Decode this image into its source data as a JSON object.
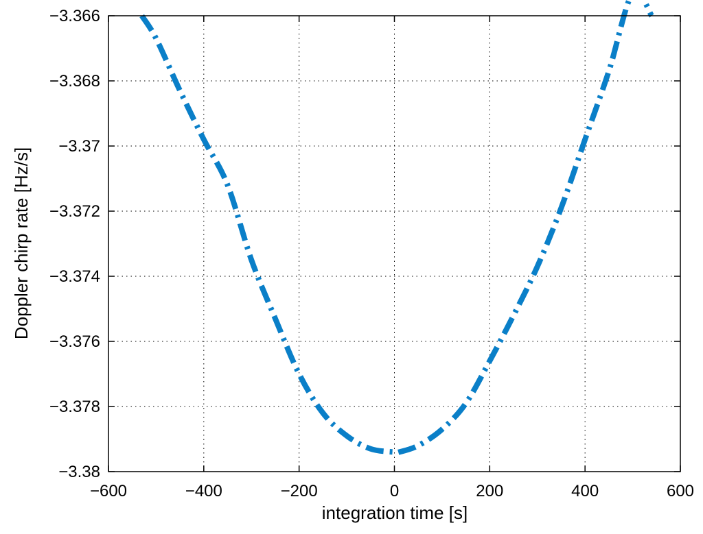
{
  "chart_data": {
    "type": "line",
    "title": "",
    "xlabel": "integration time [s]",
    "ylabel": "Doppler chirp rate [Hz/s]",
    "xlim": [
      -600,
      600
    ],
    "ylim": [
      -3.38,
      -3.366
    ],
    "xticks": [
      -600,
      -400,
      -200,
      0,
      200,
      400,
      600
    ],
    "xtick_labels": [
      "−600",
      "−400",
      "−200",
      "0",
      "200",
      "400",
      "600"
    ],
    "yticks": [
      -3.366,
      -3.368,
      -3.37,
      -3.372,
      -3.374,
      -3.376,
      -3.378,
      -3.38
    ],
    "ytick_labels": [
      "−3.366",
      "−3.368",
      "−3.37",
      "−3.372",
      "−3.374",
      "−3.376",
      "−3.378",
      "−3.38"
    ],
    "grid": true,
    "grid_style": "dotted",
    "line_style": "dash-dot",
    "series": [
      {
        "color": "#0a7fc8",
        "x": [
          -530,
          -500,
          -450,
          -400,
          -350,
          -300,
          -250,
          -200,
          -150,
          -100,
          -50,
          0,
          10,
          50,
          100,
          150,
          200,
          250,
          300,
          350,
          400,
          450,
          500,
          540
        ],
        "y": [
          -3.366,
          -3.3667,
          -3.3683,
          -3.3698,
          -3.3712,
          -3.3735,
          -3.3753,
          -3.377,
          -3.3782,
          -3.3789,
          -3.3793,
          -3.3794,
          -3.3794,
          -3.3792,
          -3.3787,
          -3.3779,
          -3.3766,
          -3.3752,
          -3.3737,
          -3.3719,
          -3.3698,
          -3.3677,
          -3.3653,
          -3.366
        ]
      }
    ]
  }
}
